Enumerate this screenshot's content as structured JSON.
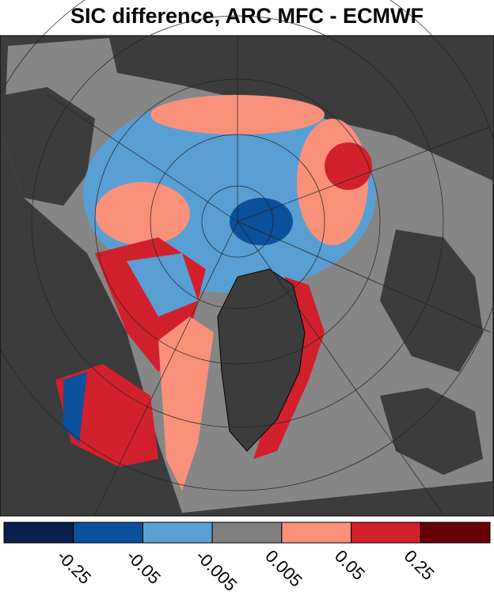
{
  "title": "SIC difference, ARC MFC - ECMWF",
  "colorbar": {
    "colors": [
      "#0b1f4f",
      "#0b519c",
      "#5a9fd4",
      "#808080",
      "#f9917a",
      "#d1202b",
      "#6a0007"
    ],
    "ticks": [
      -0.25,
      -0.05,
      -0.005,
      0.005,
      0.05,
      0.25
    ]
  }
}
